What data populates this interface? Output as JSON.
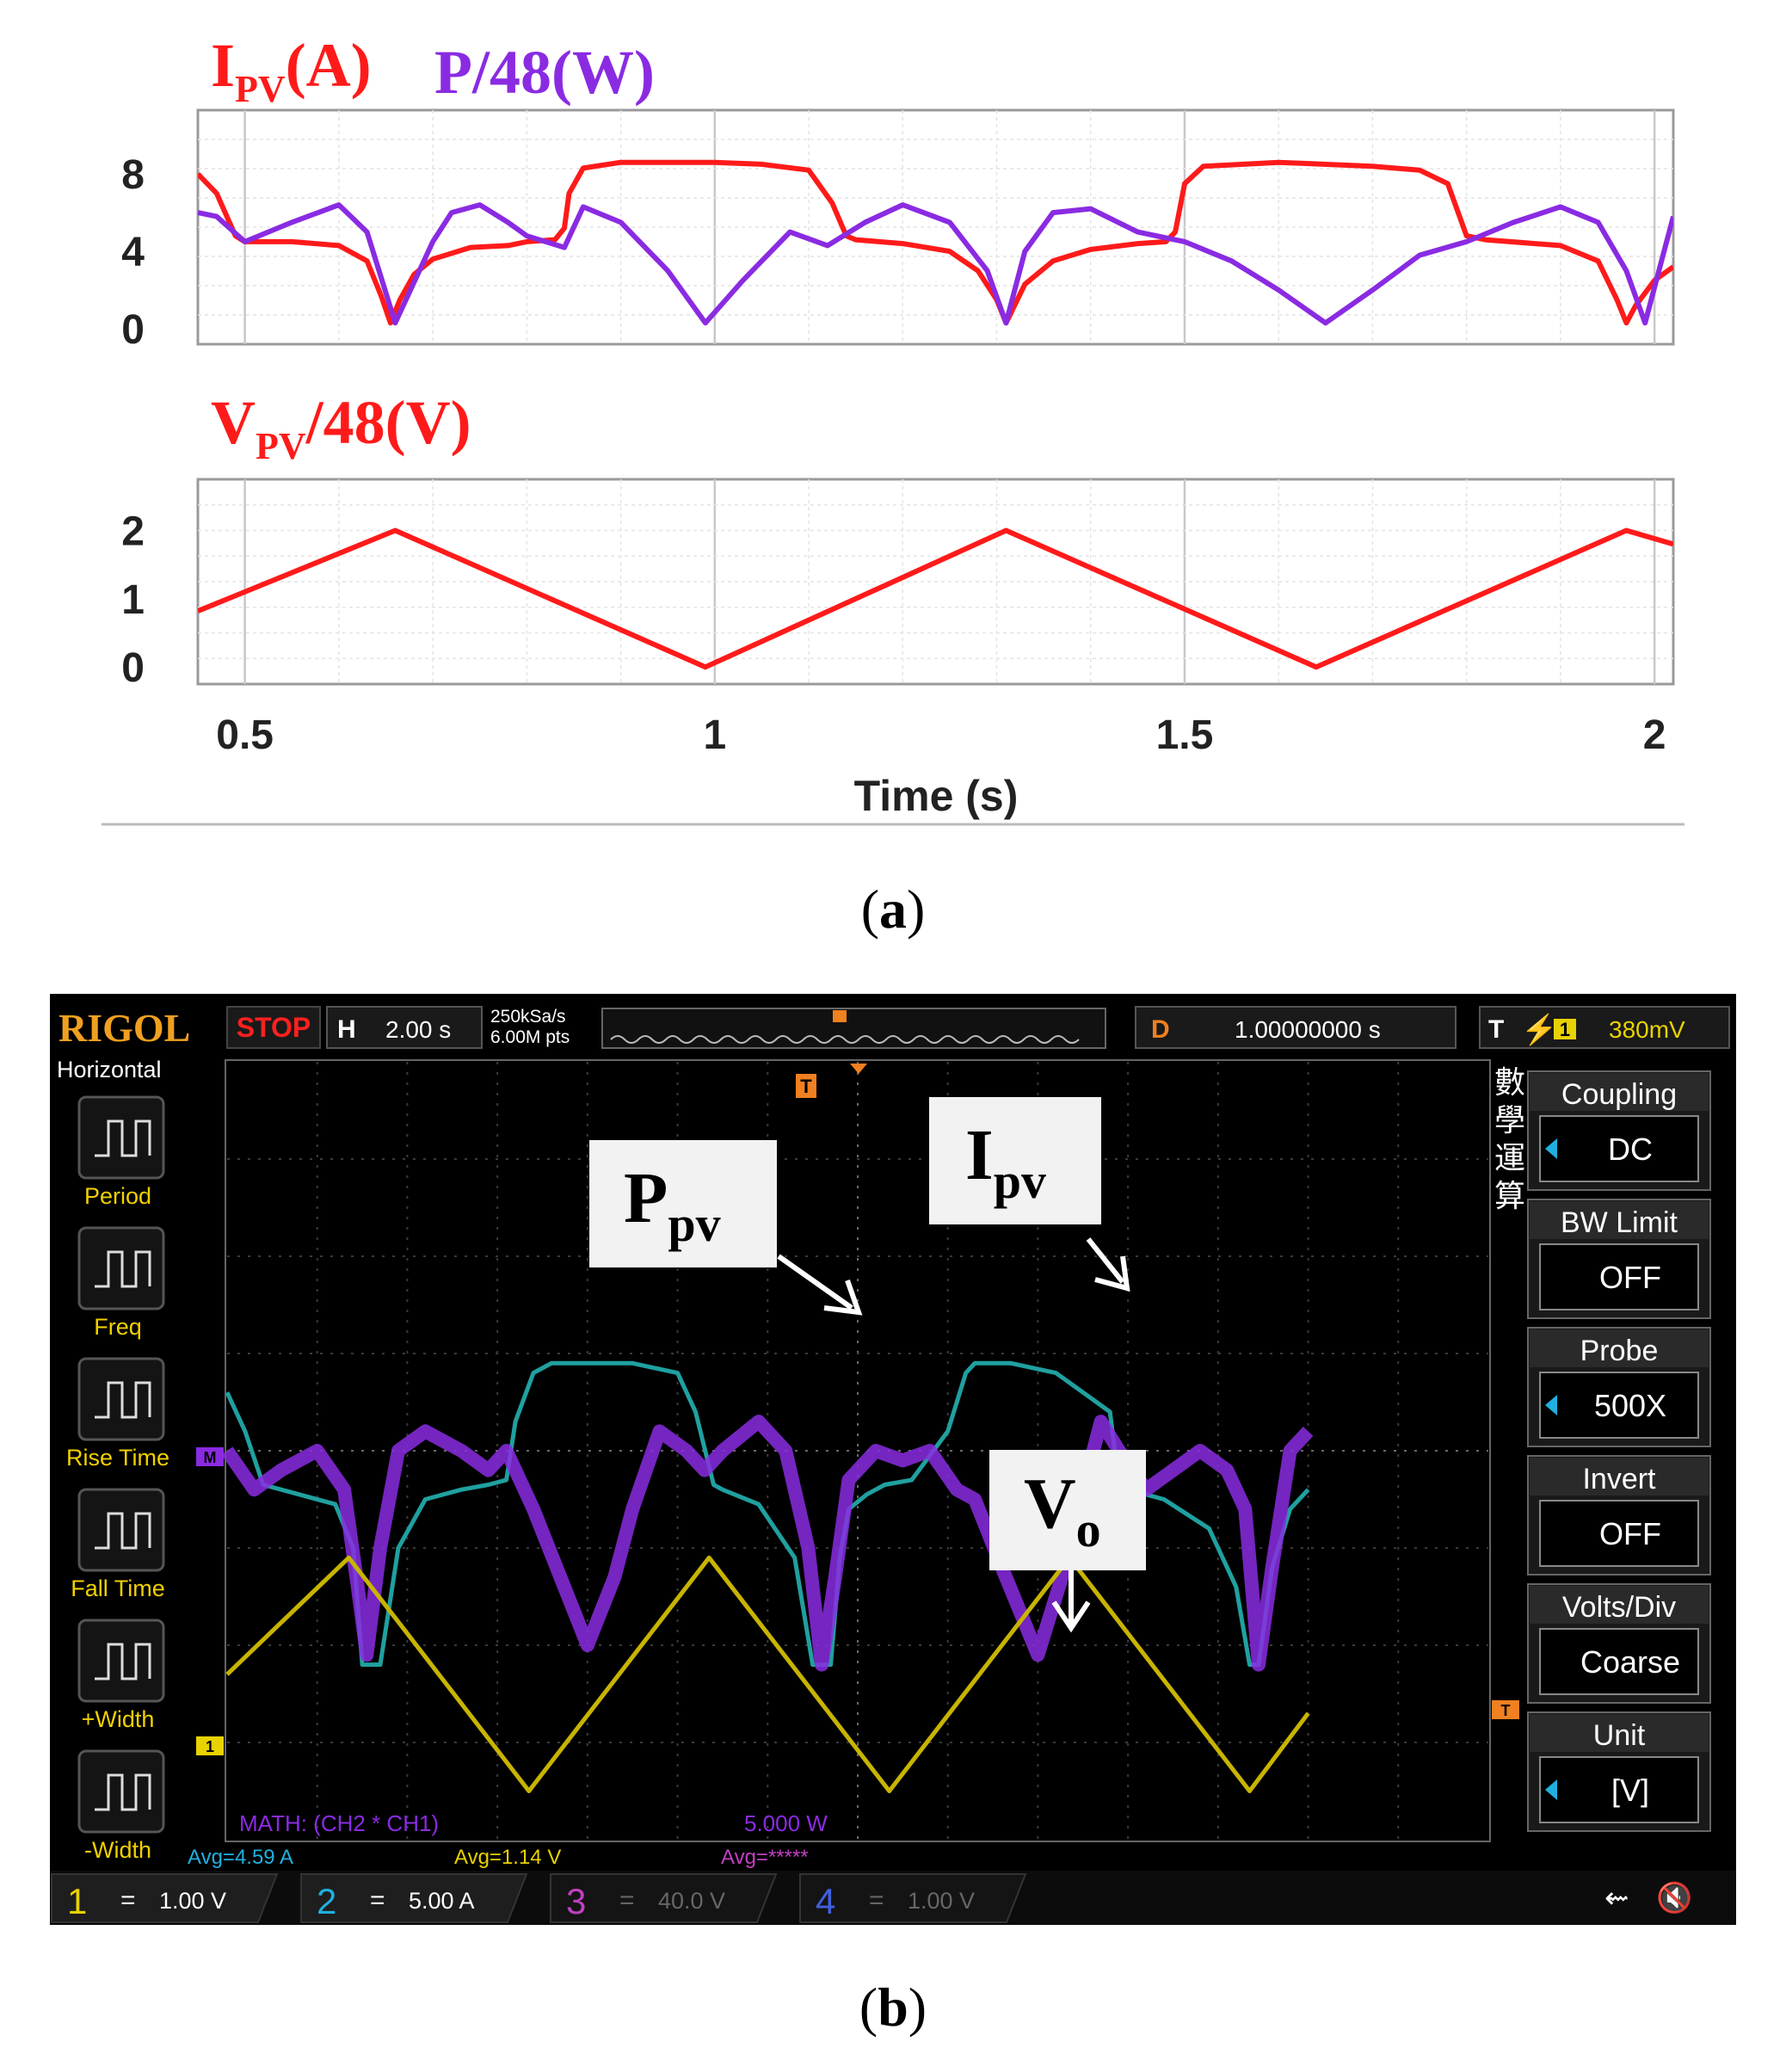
{
  "chart_data": [
    {
      "type": "line",
      "panel": "a",
      "title_parts": [
        {
          "main": "I",
          "sub": "PV",
          "rest": "(A)",
          "color": "#ff1a1a"
        },
        {
          "main": "P/48(W)",
          "sub": "",
          "rest": "",
          "color": "#8a2be2"
        }
      ],
      "xlim": [
        0.45,
        2.02
      ],
      "ylim": [
        -0.8,
        11.3
      ],
      "yticks": [
        "8",
        "4",
        "0"
      ],
      "ytick_values": [
        8,
        4,
        0
      ],
      "grid": true,
      "series": [
        {
          "color": "#ff1a1a",
          "x": [
            0.45,
            0.47,
            0.49,
            0.5,
            0.55,
            0.6,
            0.63,
            0.645,
            0.655,
            0.665,
            0.68,
            0.7,
            0.74,
            0.78,
            0.8,
            0.83,
            0.84,
            0.845,
            0.86,
            0.9,
            0.95,
            1.0,
            1.05,
            1.1,
            1.125,
            1.14,
            1.15,
            1.2,
            1.25,
            1.28,
            1.3,
            1.31,
            1.315,
            1.33,
            1.36,
            1.4,
            1.45,
            1.48,
            1.49,
            1.5,
            1.52,
            1.6,
            1.7,
            1.75,
            1.78,
            1.8,
            1.82,
            1.9,
            1.94,
            1.96,
            1.97,
            1.98,
            2.0,
            2.02
          ],
          "y": [
            8.0,
            7.0,
            4.8,
            4.5,
            4.5,
            4.3,
            3.5,
            1.7,
            0.3,
            1.5,
            2.8,
            3.6,
            4.2,
            4.3,
            4.5,
            4.6,
            5.2,
            7.0,
            8.3,
            8.6,
            8.6,
            8.6,
            8.5,
            8.2,
            6.5,
            4.8,
            4.6,
            4.4,
            4.0,
            3.0,
            1.5,
            0.3,
            0.8,
            2.3,
            3.5,
            4.1,
            4.4,
            4.5,
            5.0,
            7.5,
            8.4,
            8.6,
            8.4,
            8.2,
            7.5,
            4.8,
            4.6,
            4.3,
            3.5,
            1.5,
            0.3,
            1.2,
            2.5,
            3.2
          ]
        },
        {
          "color": "#8a2be2",
          "x": [
            0.45,
            0.47,
            0.5,
            0.55,
            0.6,
            0.63,
            0.66,
            0.7,
            0.72,
            0.75,
            0.78,
            0.8,
            0.82,
            0.84,
            0.86,
            0.9,
            0.95,
            0.99,
            1.03,
            1.08,
            1.12,
            1.16,
            1.2,
            1.25,
            1.29,
            1.31,
            1.33,
            1.36,
            1.4,
            1.45,
            1.5,
            1.55,
            1.6,
            1.65,
            1.7,
            1.75,
            1.8,
            1.85,
            1.9,
            1.94,
            1.97,
            1.99,
            2.02
          ],
          "y": [
            6.0,
            5.8,
            4.5,
            5.5,
            6.4,
            5.0,
            0.3,
            4.5,
            6.0,
            6.4,
            5.5,
            4.8,
            4.5,
            4.2,
            6.3,
            5.5,
            3.0,
            0.3,
            2.5,
            5.0,
            4.3,
            5.5,
            6.4,
            5.5,
            3.0,
            0.3,
            4.0,
            6.0,
            6.2,
            5.0,
            4.5,
            3.5,
            2.0,
            0.3,
            2.0,
            3.8,
            4.5,
            5.5,
            6.3,
            5.5,
            3.0,
            0.3,
            5.8
          ]
        }
      ]
    },
    {
      "type": "line",
      "panel": "a",
      "title_parts": [
        {
          "main": "V",
          "sub": "PV",
          "rest": "/48(V)",
          "color": "#ff1a1a"
        }
      ],
      "xlim": [
        0.45,
        2.02
      ],
      "ylim": [
        -0.25,
        2.75
      ],
      "yticks": [
        "2",
        "1",
        "0"
      ],
      "ytick_values": [
        2,
        1,
        0
      ],
      "xticks": [
        "0.5",
        "1",
        "1.5",
        "2"
      ],
      "xtick_values": [
        0.5,
        1.0,
        1.5,
        2.0
      ],
      "xlabel": "Time (s)",
      "grid": true,
      "series": [
        {
          "color": "#ff1a1a",
          "x": [
            0.45,
            0.66,
            0.99,
            1.31,
            1.64,
            1.97,
            2.02
          ],
          "y": [
            0.82,
            2.0,
            0.0,
            2.0,
            0.0,
            2.0,
            1.8
          ]
        }
      ]
    },
    {
      "type": "line",
      "panel": "b",
      "xlim": [
        0,
        14
      ],
      "ylim": [
        -4,
        4
      ],
      "grid": true,
      "series": [
        {
          "color": "#20a0a0",
          "x": [
            0.0,
            0.2,
            0.4,
            0.8,
            1.2,
            1.4,
            1.5,
            1.7,
            1.9,
            2.2,
            2.6,
            2.9,
            3.1,
            3.2,
            3.4,
            3.6,
            4.0,
            4.5,
            5.0,
            5.2,
            5.4,
            5.5,
            5.9,
            6.3,
            6.5,
            6.7,
            6.8,
            6.9,
            7.1,
            7.3,
            7.6,
            8.0,
            8.2,
            8.3,
            8.5,
            8.7,
            9.2,
            9.8,
            9.9,
            10.0,
            10.4,
            10.9,
            11.2,
            11.35,
            11.45,
            11.6,
            11.8,
            12.0
          ],
          "y": [
            0.6,
            0.2,
            -0.35,
            -0.45,
            -0.55,
            -1.0,
            -2.2,
            -2.2,
            -1.0,
            -0.5,
            -0.4,
            -0.35,
            -0.3,
            0.3,
            0.8,
            0.9,
            0.9,
            0.9,
            0.8,
            0.4,
            -0.35,
            -0.4,
            -0.55,
            -1.1,
            -2.2,
            -2.2,
            -1.1,
            -0.6,
            -0.45,
            -0.35,
            -0.3,
            0.2,
            0.8,
            0.9,
            0.9,
            0.9,
            0.8,
            0.4,
            -0.35,
            -0.4,
            -0.5,
            -0.8,
            -1.4,
            -2.2,
            -2.2,
            -1.2,
            -0.6,
            -0.4
          ]
        },
        {
          "color": "#8a2be2",
          "x": [
            0.0,
            0.3,
            0.6,
            1.0,
            1.3,
            1.45,
            1.55,
            1.7,
            1.9,
            2.2,
            2.6,
            2.9,
            3.1,
            3.4,
            3.7,
            4.0,
            4.3,
            4.5,
            4.8,
            5.1,
            5.3,
            5.5,
            5.9,
            6.2,
            6.45,
            6.6,
            6.75,
            6.9,
            7.2,
            7.5,
            7.8,
            8.1,
            8.3,
            8.6,
            9.0,
            9.3,
            9.5,
            9.7,
            9.9,
            10.2,
            10.5,
            10.8,
            11.1,
            11.3,
            11.45,
            11.6,
            11.8,
            12.0
          ],
          "y": [
            0.0,
            -0.4,
            -0.2,
            0.0,
            -0.4,
            -1.4,
            -2.1,
            -1.0,
            0.0,
            0.2,
            0.0,
            -0.2,
            0.0,
            -0.6,
            -1.3,
            -2.0,
            -1.3,
            -0.6,
            0.2,
            0.0,
            -0.2,
            0.0,
            0.3,
            0.0,
            -1.0,
            -2.2,
            -1.3,
            -0.3,
            0.0,
            -0.1,
            0.0,
            -0.4,
            -0.5,
            -1.2,
            -2.1,
            -1.2,
            -0.4,
            0.3,
            0.0,
            -0.4,
            -0.2,
            0.0,
            -0.2,
            -0.6,
            -2.2,
            -1.2,
            0.0,
            0.2
          ]
        },
        {
          "color": "#c8b400",
          "x": [
            0.0,
            1.35,
            3.35,
            5.35,
            7.35,
            9.35,
            11.35,
            12.0
          ],
          "y": [
            -2.3,
            -1.1,
            -3.5,
            -1.1,
            -3.5,
            -1.1,
            -3.5,
            -2.7
          ]
        }
      ]
    }
  ],
  "panel_a": {
    "label": "(a)",
    "label_parts": {
      "open": "(",
      "letter": "a",
      "close": ")"
    }
  },
  "panel_b": {
    "label_parts": {
      "open": "(",
      "letter": "b",
      "close": ")"
    },
    "scope": {
      "brand": "RIGOL",
      "run_state": "STOP",
      "h_label": "H",
      "timebase": "2.00 s",
      "sample_rate": "250kSa/s",
      "memory_depth": "6.00M pts",
      "delay_label": "D",
      "delay": "1.00000000 s",
      "trigger_label": "T",
      "trigger_source": "1",
      "trigger_level": "380mV",
      "left_menu_title": "Horizontal",
      "left_menu": [
        "Period",
        "Freq",
        "Rise Time",
        "Fall Time",
        "+Width",
        "-Width"
      ],
      "right_vertical_text": [
        "數",
        "學",
        "運",
        "算"
      ],
      "right_menu": [
        {
          "label": "Coupling",
          "value": "DC",
          "arrow": true
        },
        {
          "label": "BW Limit",
          "value": "OFF",
          "arrow": false
        },
        {
          "label": "Probe",
          "value": "500X",
          "arrow": true
        },
        {
          "label": "Invert",
          "value": "OFF",
          "arrow": false
        },
        {
          "label": "Volts/Div",
          "value": "Coarse",
          "arrow": false
        },
        {
          "label": "Unit",
          "value": "[V]",
          "arrow": true
        }
      ],
      "math_label": "MATH:  (CH2 * CH1)",
      "math_scale": "5.000 W",
      "avg_values": [
        "Avg=4.59 A",
        "Avg=1.14 V",
        "Avg=*****"
      ],
      "channels": [
        {
          "num": "1",
          "coupling": "=",
          "scale": "1.00 V",
          "color": "#e8d200"
        },
        {
          "num": "2",
          "coupling": "=",
          "scale": "5.00 A",
          "color": "#20b0e0"
        },
        {
          "num": "3",
          "coupling": "=",
          "scale": "40.0 V",
          "color": "#c040c0"
        },
        {
          "num": "4",
          "coupling": "=",
          "scale": "1.00 V",
          "color": "#4060e0"
        }
      ],
      "marker_t": "T",
      "marker_m": "M",
      "marker_1": "1",
      "annotations": [
        {
          "main": "P",
          "sub": "pv"
        },
        {
          "main": "I",
          "sub": "pv"
        },
        {
          "main": "V",
          "sub": "o"
        }
      ]
    }
  }
}
